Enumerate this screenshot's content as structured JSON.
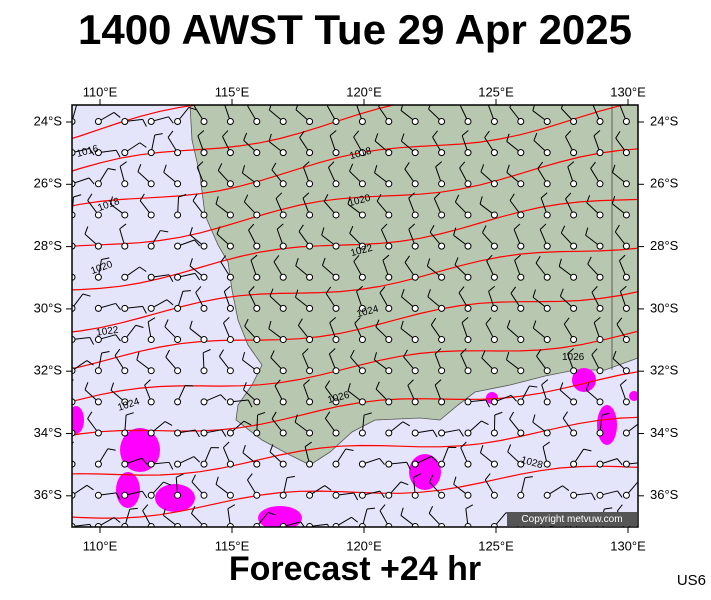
{
  "title": "1400 AWST Tue 29 Apr 2025",
  "lon_labels": [
    "110°E",
    "115°E",
    "120°E",
    "125°E",
    "130°E"
  ],
  "lat_labels": [
    "24°S",
    "26°S",
    "28°S",
    "30°S",
    "32°S",
    "34°S",
    "36°S"
  ],
  "isobar_labels": [
    "1016",
    "1018",
    "1020",
    "1022",
    "1024",
    "1018",
    "1020",
    "1022",
    "1024",
    "1026",
    "1026",
    "1028"
  ],
  "copyright": "Copyright metvuw.com",
  "footer": "Forecast +24 hr",
  "code": "US6"
}
